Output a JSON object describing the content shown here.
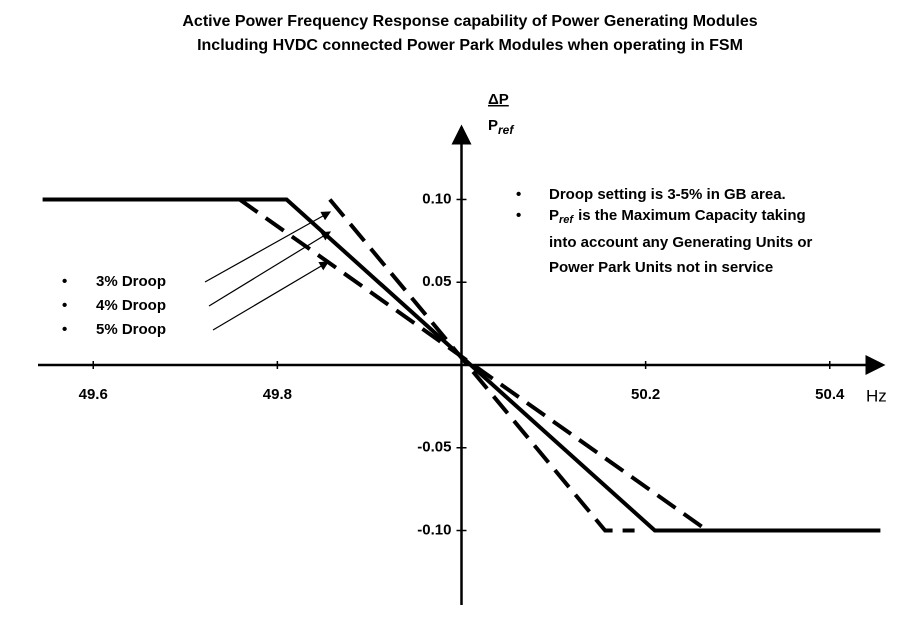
{
  "chart_data": {
    "type": "line",
    "title": [
      "Active Power Frequency Response capability of Power Generating Modules",
      "Including HVDC connected Power Park Modules when operating in FSM"
    ],
    "y_label": {
      "numerator": "ΔP",
      "denominator": "P",
      "subscript": "ref"
    },
    "x_label": "Hz",
    "xlim": [
      49.54,
      50.46
    ],
    "ylim": [
      -0.145,
      0.145
    ],
    "xticks": [
      49.6,
      49.8,
      50.2,
      50.4
    ],
    "yticks": [
      {
        "value": 0.1,
        "label": "0.10"
      },
      0.05,
      -0.05,
      {
        "value": -0.1,
        "label": "-0.10"
      }
    ],
    "series": [
      {
        "name": "3% Droop",
        "color": "#000000",
        "style": "dashed",
        "x": [
          49.857,
          50.156,
          50.188
        ],
        "values": [
          0.1,
          -0.1,
          -0.1
        ]
      },
      {
        "name": "4% Droop",
        "color": "#000000",
        "style": "solid",
        "x": [
          49.545,
          49.81,
          50.21,
          50.455
        ],
        "values": [
          0.1,
          0.1,
          -0.1,
          -0.1
        ]
      },
      {
        "name": "5% Droop",
        "color": "#000000",
        "style": "dashed",
        "x": [
          49.759,
          50.267
        ],
        "values": [
          0.1,
          -0.1
        ]
      }
    ],
    "notes": [
      {
        "lines": [
          "Droop setting  is 3-5% in GB area."
        ]
      },
      {
        "symbol": "P",
        "subscript": "ref",
        "lines": [
          "is the Maximum Capacity taking",
          "into account any Generating Units or",
          "Power Park Units not in service"
        ]
      }
    ]
  }
}
